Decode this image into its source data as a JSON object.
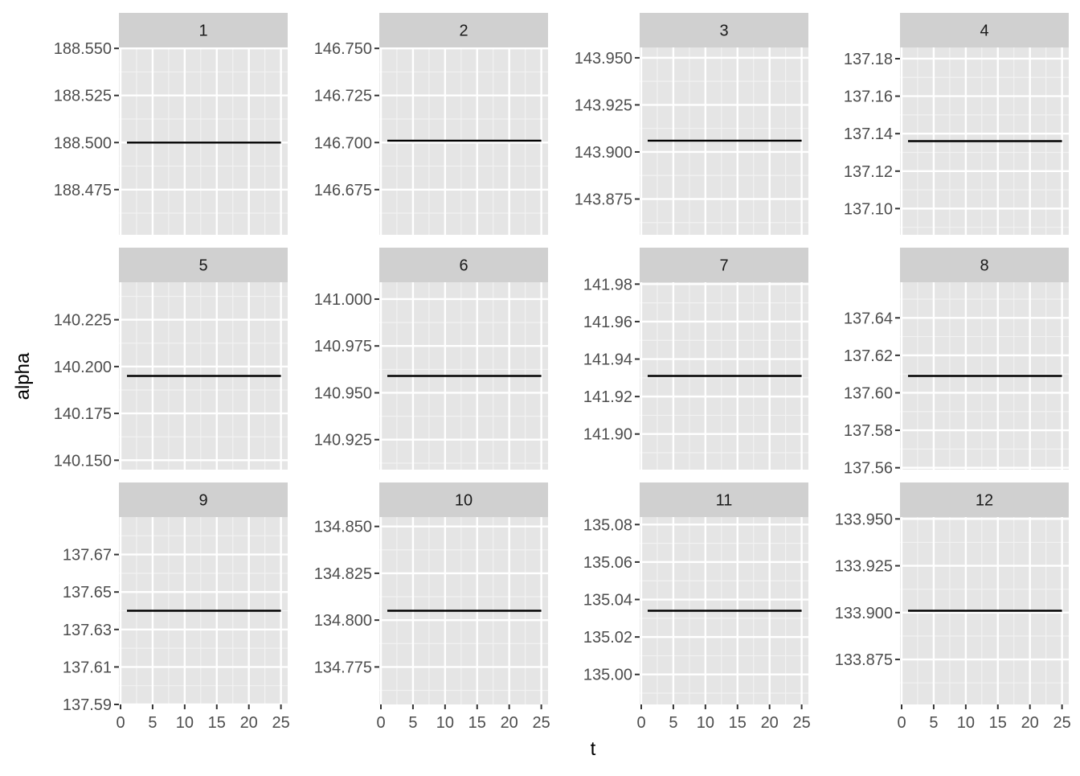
{
  "chart_data": {
    "type": "line",
    "facet_layout": "4 columns x 3 rows",
    "xlabel": "t",
    "ylabel": "alpha",
    "x_ticks": [
      0,
      5,
      10,
      15,
      20,
      25
    ],
    "xlim": [
      0,
      25.8
    ],
    "grid": true,
    "background": "#E5E5E5",
    "strip_color": "#D0D0D0",
    "line_color": "#000000",
    "panels": [
      {
        "label": "1",
        "x": [
          1,
          25
        ],
        "y": [
          188.5,
          188.5
        ],
        "ylim": [
          188.451,
          188.5505
        ],
        "y_ticks": [
          "188.475",
          "188.500",
          "188.525",
          "188.550"
        ]
      },
      {
        "label": "2",
        "x": [
          1,
          25
        ],
        "y": [
          146.701,
          146.701
        ],
        "ylim": [
          146.651,
          146.7505
        ],
        "y_ticks": [
          "146.675",
          "146.700",
          "146.725",
          "146.750"
        ]
      },
      {
        "label": "3",
        "x": [
          1,
          25
        ],
        "y": [
          143.906,
          143.906
        ],
        "ylim": [
          143.856,
          143.9555
        ],
        "y_ticks": [
          "143.875",
          "143.900",
          "143.925",
          "143.950"
        ]
      },
      {
        "label": "4",
        "x": [
          1,
          25
        ],
        "y": [
          137.136,
          137.136
        ],
        "ylim": [
          137.086,
          137.186
        ],
        "y_ticks": [
          "137.10",
          "137.12",
          "137.14",
          "137.16",
          "137.18"
        ]
      },
      {
        "label": "5",
        "x": [
          1,
          25
        ],
        "y": [
          140.195,
          140.195
        ],
        "ylim": [
          140.145,
          140.245
        ],
        "y_ticks": [
          "140.150",
          "140.175",
          "140.200",
          "140.225"
        ]
      },
      {
        "label": "6",
        "x": [
          1,
          25
        ],
        "y": [
          140.959,
          140.959
        ],
        "ylim": [
          140.909,
          141.009
        ],
        "y_ticks": [
          "140.925",
          "140.950",
          "140.975",
          "141.000"
        ]
      },
      {
        "label": "7",
        "x": [
          1,
          25
        ],
        "y": [
          141.931,
          141.931
        ],
        "ylim": [
          141.881,
          141.981
        ],
        "y_ticks": [
          "141.90",
          "141.92",
          "141.94",
          "141.96",
          "141.98"
        ]
      },
      {
        "label": "8",
        "x": [
          1,
          25
        ],
        "y": [
          137.609,
          137.609
        ],
        "ylim": [
          137.559,
          137.659
        ],
        "y_ticks": [
          "137.56",
          "137.58",
          "137.60",
          "137.62",
          "137.64"
        ]
      },
      {
        "label": "9",
        "x": [
          1,
          25
        ],
        "y": [
          137.64,
          137.64
        ],
        "ylim": [
          137.59,
          137.69
        ],
        "y_ticks": [
          "137.59",
          "137.61",
          "137.63",
          "137.65",
          "137.67"
        ]
      },
      {
        "label": "10",
        "x": [
          1,
          25
        ],
        "y": [
          134.805,
          134.805
        ],
        "ylim": [
          134.755,
          134.855
        ],
        "y_ticks": [
          "134.775",
          "134.800",
          "134.825",
          "134.850"
        ]
      },
      {
        "label": "11",
        "x": [
          1,
          25
        ],
        "y": [
          135.034,
          135.034
        ],
        "ylim": [
          134.984,
          135.084
        ],
        "y_ticks": [
          "135.00",
          "135.02",
          "135.04",
          "135.06",
          "135.08"
        ]
      },
      {
        "label": "12",
        "x": [
          1,
          25
        ],
        "y": [
          133.901,
          133.901
        ],
        "ylim": [
          133.851,
          133.951
        ],
        "y_ticks": [
          "133.875",
          "133.900",
          "133.925",
          "133.950"
        ]
      }
    ]
  }
}
